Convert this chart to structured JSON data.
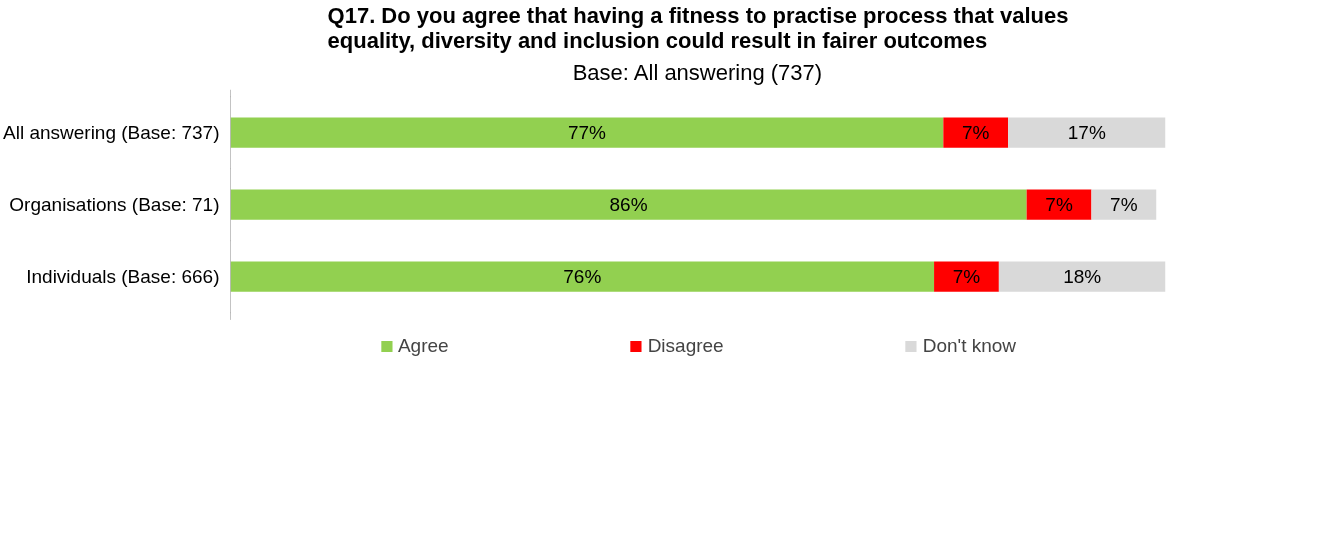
{
  "chart_data": {
    "type": "bar",
    "orientation": "horizontal",
    "stacked": true,
    "title": "Q17. Do you agree that having a fitness to practise process that values equality, diversity and inclusion could result in fairer outcomes",
    "subtitle": "Base: All answering (737)",
    "categories": [
      "All answering (Base: 737)",
      "Organisations (Base: 71)",
      "Individuals (Base: 666)"
    ],
    "series": [
      {
        "name": "Agree",
        "color": "#92d050",
        "values": [
          77,
          86,
          76
        ],
        "value_labels": [
          "77%",
          "86%",
          "76%"
        ]
      },
      {
        "name": "Disagree",
        "color": "#ff0000",
        "values": [
          7,
          7,
          7
        ],
        "value_labels": [
          "7%",
          "7%",
          "7%"
        ]
      },
      {
        "name": "Don't know",
        "color": "#d9d9d9",
        "values": [
          17,
          7,
          18
        ],
        "value_labels": [
          "17%",
          "7%",
          "18%"
        ]
      }
    ],
    "legend": "bottom",
    "tick_labels": "y"
  }
}
